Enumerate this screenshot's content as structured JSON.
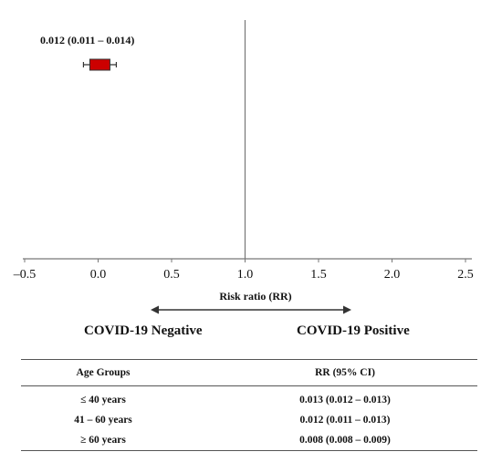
{
  "chart_data": {
    "type": "forest",
    "point": {
      "label": "0.012 (0.011 – 0.014)",
      "estimate": 0.012,
      "lower": 0.011,
      "upper": 0.014
    },
    "xlabel": "Risk ratio (RR)",
    "xlim": [
      -0.5,
      2.5
    ],
    "xticks": [
      -0.5,
      0.0,
      0.5,
      1.0,
      1.5,
      2.0,
      2.5
    ],
    "xtick_labels": [
      "–0.5",
      "0.0",
      "0.5",
      "1.0",
      "1.5",
      "2.0",
      "2.5"
    ],
    "reference_line": 1.0,
    "direction_labels": {
      "left": "COVID-19 Negative",
      "right": "COVID-19 Positive"
    },
    "colors": {
      "marker": "#cc0000",
      "axis": "#777777"
    }
  },
  "table": {
    "headers": [
      "Age Groups",
      "RR (95% CI)"
    ],
    "rows": [
      [
        "≤ 40 years",
        "0.013 (0.012 – 0.013)"
      ],
      [
        "41 – 60 years",
        "0.012 (0.011 – 0.013)"
      ],
      [
        "≥ 60 years",
        "0.008 (0.008 – 0.009)"
      ]
    ]
  }
}
